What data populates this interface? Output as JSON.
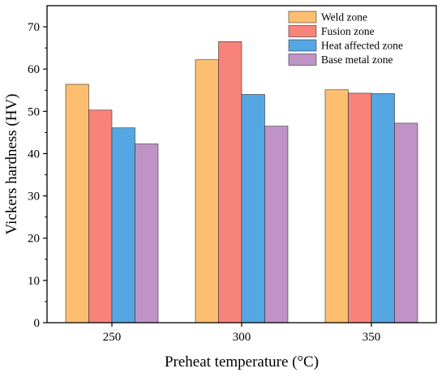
{
  "chart_data": {
    "type": "bar",
    "categories": [
      "250",
      "300",
      "350"
    ],
    "series": [
      {
        "name": "Weld zone",
        "color": "#FDBF6F",
        "values": [
          56.4,
          62.2,
          55.1
        ]
      },
      {
        "name": "Fusion zone",
        "color": "#F8837A",
        "values": [
          50.3,
          66.5,
          54.3
        ]
      },
      {
        "name": "Heat affected zone",
        "color": "#55A7E3",
        "values": [
          46.1,
          54.0,
          54.2
        ]
      },
      {
        "name": "Base metal zone",
        "color": "#BF93C5",
        "values": [
          42.3,
          46.5,
          47.2
        ]
      }
    ],
    "xlabel": "Preheat temperature (°C)",
    "ylabel": "Vickers hardness (HV)",
    "ylim": [
      0,
      75
    ],
    "yticks": [
      0,
      10,
      20,
      30,
      40,
      50,
      60,
      70
    ],
    "grid": false,
    "legend_position": "top-right"
  }
}
